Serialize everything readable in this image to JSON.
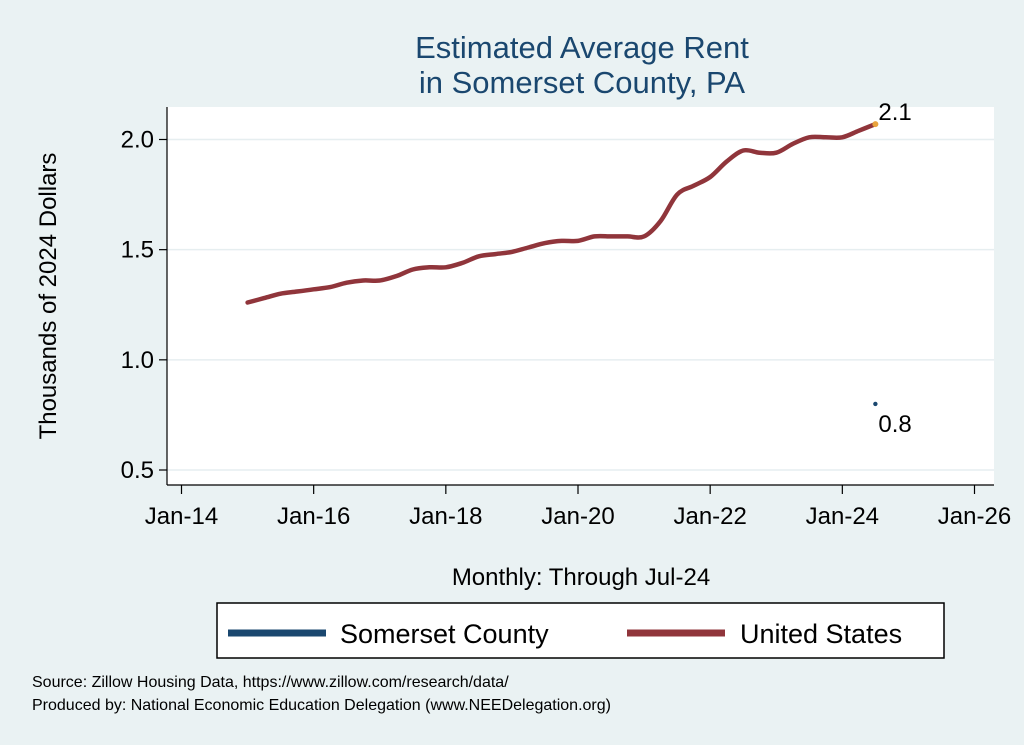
{
  "chart_data": {
    "type": "line",
    "title": [
      "Estimated Average Rent",
      "in Somerset County, PA"
    ],
    "xlabel": "Monthly: Through Jul-24",
    "ylabel": "Thousands of 2024 Dollars",
    "x_range": [
      "2014-01",
      "2026-01"
    ],
    "y_range": [
      0.5,
      2.15
    ],
    "x_ticks": [
      {
        "date": "2014-01",
        "label": "Jan-14"
      },
      {
        "date": "2016-01",
        "label": "Jan-16"
      },
      {
        "date": "2018-01",
        "label": "Jan-18"
      },
      {
        "date": "2020-01",
        "label": "Jan-20"
      },
      {
        "date": "2022-01",
        "label": "Jan-22"
      },
      {
        "date": "2024-01",
        "label": "Jan-24"
      },
      {
        "date": "2026-01",
        "label": "Jan-26"
      }
    ],
    "y_ticks": [
      {
        "value": 0.5,
        "label": "0.5"
      },
      {
        "value": 1.0,
        "label": "1.0"
      },
      {
        "value": 1.5,
        "label": "1.5"
      },
      {
        "value": 2.0,
        "label": "2.0"
      }
    ],
    "grid": true,
    "legend_position": "bottom",
    "series": [
      {
        "name": "Somerset County",
        "color": "#1a476f",
        "points": [
          {
            "date": "2024-07",
            "value": 0.8
          }
        ],
        "end_label": "0.8"
      },
      {
        "name": "United States",
        "color": "#90353b",
        "points": [
          {
            "date": "2015-01",
            "value": 1.26
          },
          {
            "date": "2015-04",
            "value": 1.28
          },
          {
            "date": "2015-07",
            "value": 1.3
          },
          {
            "date": "2015-10",
            "value": 1.31
          },
          {
            "date": "2016-01",
            "value": 1.32
          },
          {
            "date": "2016-04",
            "value": 1.33
          },
          {
            "date": "2016-07",
            "value": 1.35
          },
          {
            "date": "2016-10",
            "value": 1.36
          },
          {
            "date": "2017-01",
            "value": 1.36
          },
          {
            "date": "2017-04",
            "value": 1.38
          },
          {
            "date": "2017-07",
            "value": 1.41
          },
          {
            "date": "2017-10",
            "value": 1.42
          },
          {
            "date": "2018-01",
            "value": 1.42
          },
          {
            "date": "2018-04",
            "value": 1.44
          },
          {
            "date": "2018-07",
            "value": 1.47
          },
          {
            "date": "2018-10",
            "value": 1.48
          },
          {
            "date": "2019-01",
            "value": 1.49
          },
          {
            "date": "2019-04",
            "value": 1.51
          },
          {
            "date": "2019-07",
            "value": 1.53
          },
          {
            "date": "2019-10",
            "value": 1.54
          },
          {
            "date": "2020-01",
            "value": 1.54
          },
          {
            "date": "2020-04",
            "value": 1.56
          },
          {
            "date": "2020-07",
            "value": 1.56
          },
          {
            "date": "2020-10",
            "value": 1.56
          },
          {
            "date": "2021-01",
            "value": 1.56
          },
          {
            "date": "2021-04",
            "value": 1.63
          },
          {
            "date": "2021-07",
            "value": 1.75
          },
          {
            "date": "2021-10",
            "value": 1.79
          },
          {
            "date": "2022-01",
            "value": 1.83
          },
          {
            "date": "2022-04",
            "value": 1.9
          },
          {
            "date": "2022-07",
            "value": 1.95
          },
          {
            "date": "2022-10",
            "value": 1.94
          },
          {
            "date": "2023-01",
            "value": 1.94
          },
          {
            "date": "2023-04",
            "value": 1.98
          },
          {
            "date": "2023-07",
            "value": 2.01
          },
          {
            "date": "2023-10",
            "value": 2.01
          },
          {
            "date": "2024-01",
            "value": 2.01
          },
          {
            "date": "2024-04",
            "value": 2.04
          },
          {
            "date": "2024-07",
            "value": 2.07
          }
        ],
        "end_label": "2.1",
        "end_marker_color": "#e8a33d"
      }
    ],
    "source_lines": [
      "Source: Zillow Housing Data, https://www.zillow.com/research/data/",
      "Produced by: National Economic Education Delegation (www.NEEDelegation.org)"
    ]
  }
}
